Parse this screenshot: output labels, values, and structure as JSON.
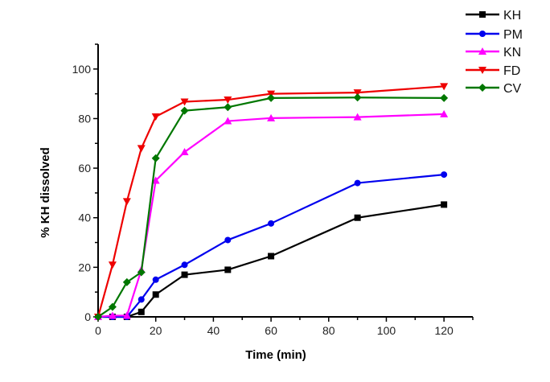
{
  "chart_data": {
    "type": "line",
    "title": "",
    "xlabel": "Time (min)",
    "ylabel": "% KH dissolved",
    "xlim": [
      0,
      130
    ],
    "ylim": [
      0,
      110
    ],
    "xticks": [
      0,
      20,
      40,
      60,
      80,
      100,
      120
    ],
    "yticks": [
      0,
      20,
      40,
      60,
      80,
      100
    ],
    "grid": false,
    "legend_position": "top-right",
    "series": [
      {
        "name": "KH",
        "color": "#000000",
        "marker": "square",
        "x": [
          0,
          5,
          10,
          15,
          20,
          30,
          45,
          60,
          90,
          120
        ],
        "y": [
          0,
          0,
          0,
          2,
          9,
          17,
          19,
          24.5,
          40,
          45.3
        ]
      },
      {
        "name": "PM",
        "color": "#0000ee",
        "marker": "circle",
        "x": [
          0,
          5,
          10,
          15,
          20,
          30,
          45,
          60,
          90,
          120
        ],
        "y": [
          0,
          0,
          0,
          7,
          15,
          21,
          31,
          37.7,
          54,
          57.4
        ]
      },
      {
        "name": "KN",
        "color": "#ff00ff",
        "marker": "triangle-up",
        "x": [
          0,
          5,
          10,
          15,
          20,
          30,
          45,
          60,
          90,
          120
        ],
        "y": [
          0,
          0.5,
          0.5,
          19,
          55,
          66.5,
          79,
          80.2,
          80.6,
          81.8
        ]
      },
      {
        "name": "FD",
        "color": "#ee0000",
        "marker": "triangle-down",
        "x": [
          0,
          5,
          10,
          15,
          20,
          30,
          45,
          60,
          90,
          120
        ],
        "y": [
          0,
          21,
          46.6,
          68,
          80.8,
          86.8,
          87.6,
          90,
          90.5,
          93
        ]
      },
      {
        "name": "CV",
        "color": "#007700",
        "marker": "diamond",
        "x": [
          0,
          5,
          10,
          15,
          20,
          30,
          45,
          60,
          90,
          120
        ],
        "y": [
          0,
          4,
          14,
          18,
          64,
          83.2,
          84.6,
          88.3,
          88.5,
          88.3
        ]
      }
    ]
  }
}
